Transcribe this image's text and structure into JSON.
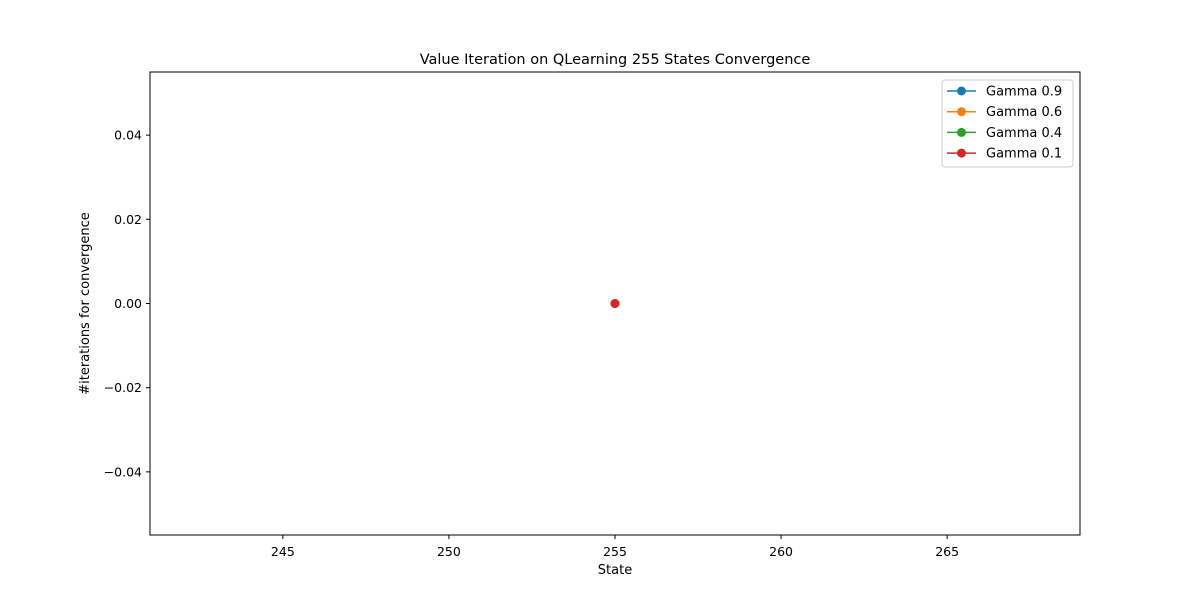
{
  "chart_data": {
    "type": "line",
    "title": "Value Iteration on QLearning 255 States  Convergence",
    "xlabel": "State",
    "ylabel": "#iterations for convergence",
    "xlim": [
      241.0,
      269.0
    ],
    "ylim": [
      -0.055,
      0.055
    ],
    "xticks": [
      245,
      250,
      255,
      260,
      265
    ],
    "yticks": [
      -0.04,
      -0.02,
      0.0,
      0.02,
      0.04
    ],
    "xtick_labels": [
      "245",
      "250",
      "255",
      "260",
      "265"
    ],
    "ytick_labels": [
      "−0.04",
      "−0.02",
      "0.00",
      "0.02",
      "0.04"
    ],
    "grid": false,
    "legend_position": "top-right",
    "series": [
      {
        "name": "Gamma 0.9",
        "color": "#1f77b4",
        "x": [
          255
        ],
        "y": [
          0
        ]
      },
      {
        "name": "Gamma 0.6",
        "color": "#ff7f0e",
        "x": [
          255
        ],
        "y": [
          0
        ]
      },
      {
        "name": "Gamma 0.4",
        "color": "#2ca02c",
        "x": [
          255
        ],
        "y": [
          0
        ]
      },
      {
        "name": "Gamma 0.1",
        "color": "#d62728",
        "x": [
          255
        ],
        "y": [
          0
        ]
      }
    ]
  }
}
